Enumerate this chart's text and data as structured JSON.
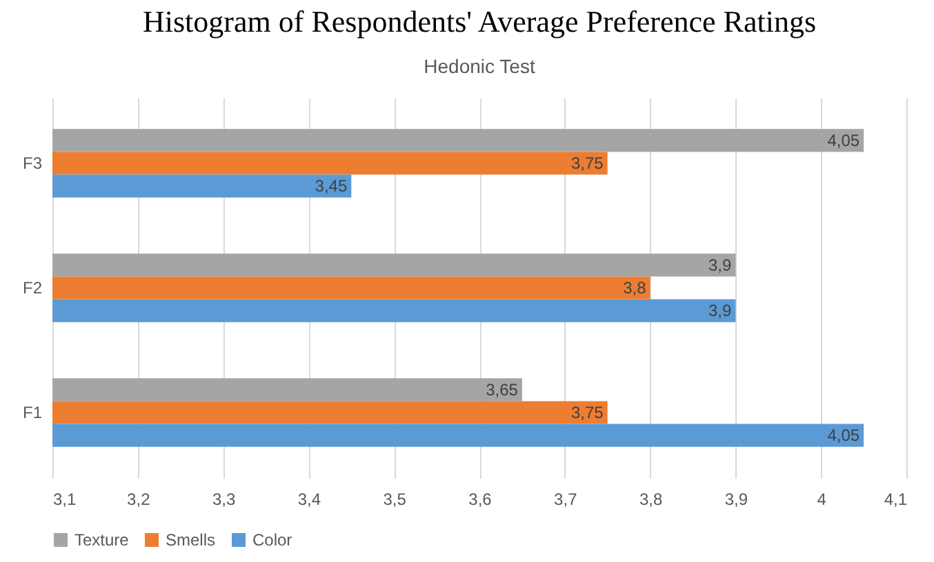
{
  "chart_data": {
    "type": "bar",
    "orientation": "horizontal",
    "title": "Histogram of Respondents' Average Preference Ratings",
    "subtitle": "Hedonic Test",
    "categories": [
      "F3",
      "F2",
      "F1"
    ],
    "series": [
      {
        "name": "Texture",
        "color": "#a5a5a5",
        "values": [
          4.05,
          3.9,
          3.65
        ],
        "value_labels": [
          "4,05",
          "3,9",
          "3,65"
        ]
      },
      {
        "name": "Smells",
        "color": "#ed7d31",
        "values": [
          3.75,
          3.8,
          3.75
        ],
        "value_labels": [
          "3,75",
          "3,8",
          "3,75"
        ]
      },
      {
        "name": "Color",
        "color": "#5b9bd5",
        "values": [
          3.45,
          3.9,
          4.05
        ],
        "value_labels": [
          "3,45",
          "3,9",
          "4,05"
        ]
      }
    ],
    "xlim": [
      3.1,
      4.1
    ],
    "xticks": [
      {
        "value": 3.1,
        "label": "3,1"
      },
      {
        "value": 3.2,
        "label": "3,2"
      },
      {
        "value": 3.3,
        "label": "3,3"
      },
      {
        "value": 3.4,
        "label": "3,4"
      },
      {
        "value": 3.5,
        "label": "3,5"
      },
      {
        "value": 3.6,
        "label": "3,6"
      },
      {
        "value": 3.7,
        "label": "3,7"
      },
      {
        "value": 3.8,
        "label": "3,8"
      },
      {
        "value": 3.9,
        "label": "3,9"
      },
      {
        "value": 4.0,
        "label": "4"
      },
      {
        "value": 4.1,
        "label": "4,1"
      }
    ],
    "grid": "x",
    "legend": "bottom"
  }
}
